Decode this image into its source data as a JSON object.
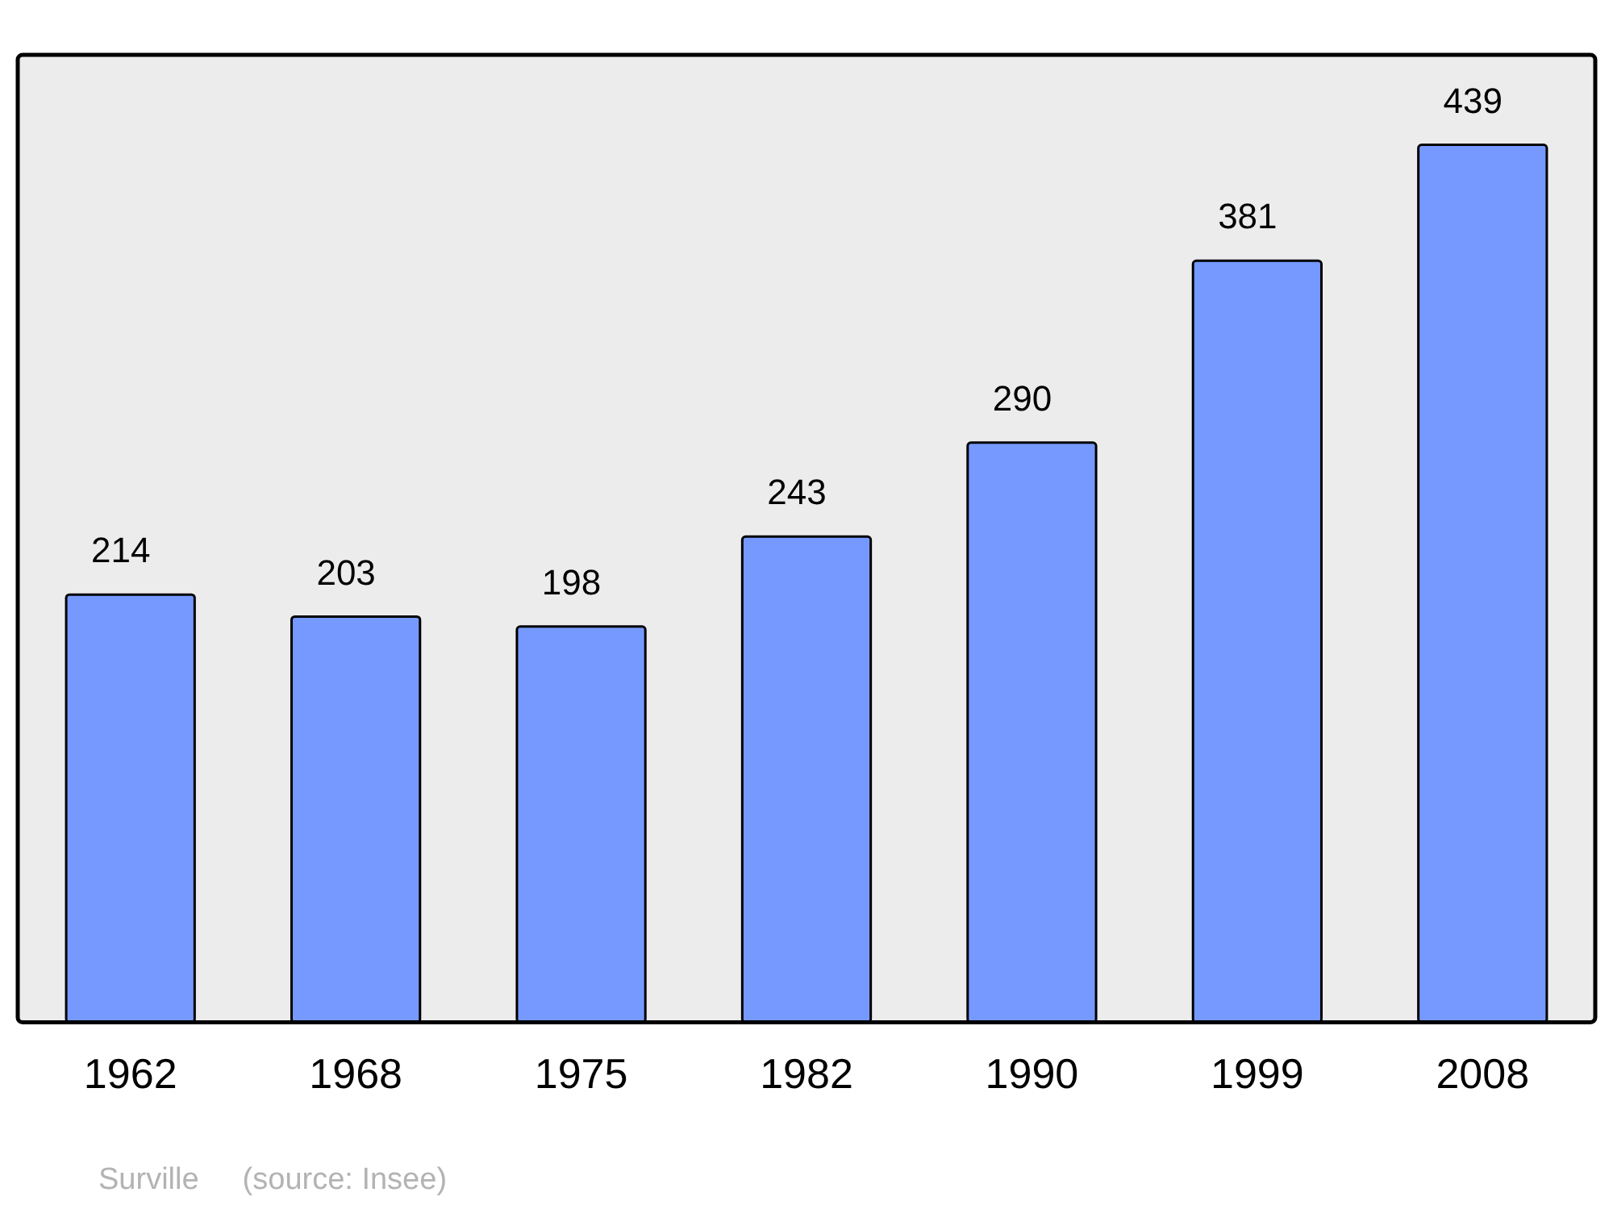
{
  "chart_data": {
    "type": "bar",
    "categories": [
      "1962",
      "1968",
      "1975",
      "1982",
      "1990",
      "1999",
      "2008"
    ],
    "values": [
      214,
      203,
      198,
      243,
      290,
      381,
      439
    ],
    "color": "#7599ff",
    "ylim": [
      0,
      484
    ],
    "tick_labels": "x",
    "grid": false,
    "legend": false,
    "data_labels": true,
    "annotations": [
      "Surville",
      "(source: Insee)"
    ]
  }
}
